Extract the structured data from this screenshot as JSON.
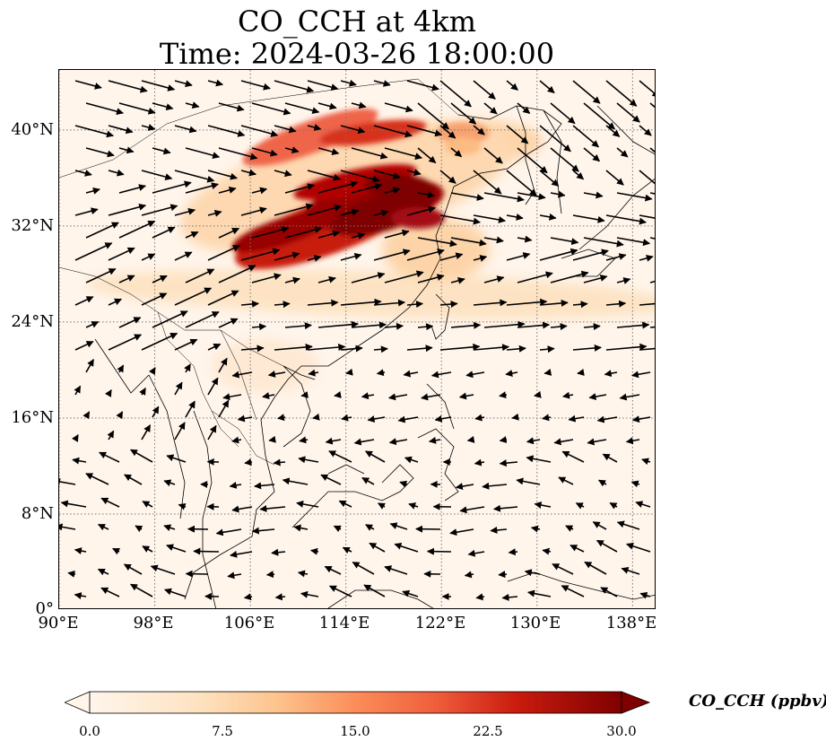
{
  "title": {
    "line1": "CO_CCH at 4km",
    "line2": "Time: 2024-03-26 18:00:00"
  },
  "map": {
    "lon_range": [
      90,
      140
    ],
    "lat_range": [
      0,
      45
    ],
    "lon_ticks": [
      "90°E",
      "98°E",
      "106°E",
      "114°E",
      "122°E",
      "130°E",
      "138°E"
    ],
    "lon_tick_values": [
      90,
      98,
      106,
      114,
      122,
      130,
      138
    ],
    "lat_ticks": [
      "40°N",
      "32°N",
      "24°N",
      "16°N",
      "8°N",
      "0°"
    ],
    "lat_tick_values": [
      40,
      32,
      24,
      16,
      8,
      0
    ],
    "gridlines": true,
    "vector_field": "wind arrows",
    "colormap": "OrRd"
  },
  "colorbar": {
    "label": "CO_CCH (ppbv)",
    "min": 0.0,
    "max": 30.0,
    "ticks": [
      "0.0",
      "7.5",
      "15.0",
      "22.5",
      "30.0"
    ],
    "tick_values": [
      0,
      7.5,
      15,
      22.5,
      30
    ],
    "extend": "both",
    "colors": [
      "#fff5eb",
      "#fdd49e",
      "#fdbb84",
      "#fc8d59",
      "#e34a33",
      "#b30000",
      "#7f0000"
    ]
  }
}
